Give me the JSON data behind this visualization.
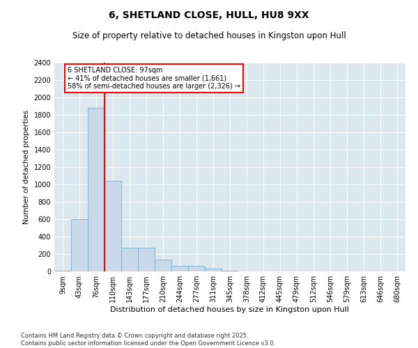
{
  "title": "6, SHETLAND CLOSE, HULL, HU8 9XX",
  "subtitle": "Size of property relative to detached houses in Kingston upon Hull",
  "xlabel": "Distribution of detached houses by size in Kingston upon Hull",
  "ylabel": "Number of detached properties",
  "categories": [
    "9sqm",
    "43sqm",
    "76sqm",
    "110sqm",
    "143sqm",
    "177sqm",
    "210sqm",
    "244sqm",
    "277sqm",
    "311sqm",
    "345sqm",
    "378sqm",
    "412sqm",
    "445sqm",
    "479sqm",
    "512sqm",
    "546sqm",
    "579sqm",
    "613sqm",
    "646sqm",
    "680sqm"
  ],
  "values": [
    10,
    600,
    1880,
    1040,
    270,
    270,
    140,
    68,
    65,
    35,
    5,
    0,
    0,
    0,
    0,
    0,
    0,
    0,
    0,
    0,
    0
  ],
  "bar_color": "#cad9ea",
  "bar_edge_color": "#7aaac8",
  "vline_x_index": 2.5,
  "vline_color": "red",
  "ylim": [
    0,
    2400
  ],
  "yticks": [
    0,
    200,
    400,
    600,
    800,
    1000,
    1200,
    1400,
    1600,
    1800,
    2000,
    2200,
    2400
  ],
  "annotation_text": "6 SHETLAND CLOSE: 97sqm\n← 41% of detached houses are smaller (1,661)\n58% of semi-detached houses are larger (2,326) →",
  "annotation_box_edgecolor": "red",
  "background_color": "#dce8f0",
  "footer": "Contains HM Land Registry data © Crown copyright and database right 2025.\nContains public sector information licensed under the Open Government Licence v3.0.",
  "title_fontsize": 10,
  "subtitle_fontsize": 8.5,
  "xlabel_fontsize": 8,
  "ylabel_fontsize": 7.5,
  "tick_fontsize": 7,
  "annotation_fontsize": 7,
  "footer_fontsize": 6
}
